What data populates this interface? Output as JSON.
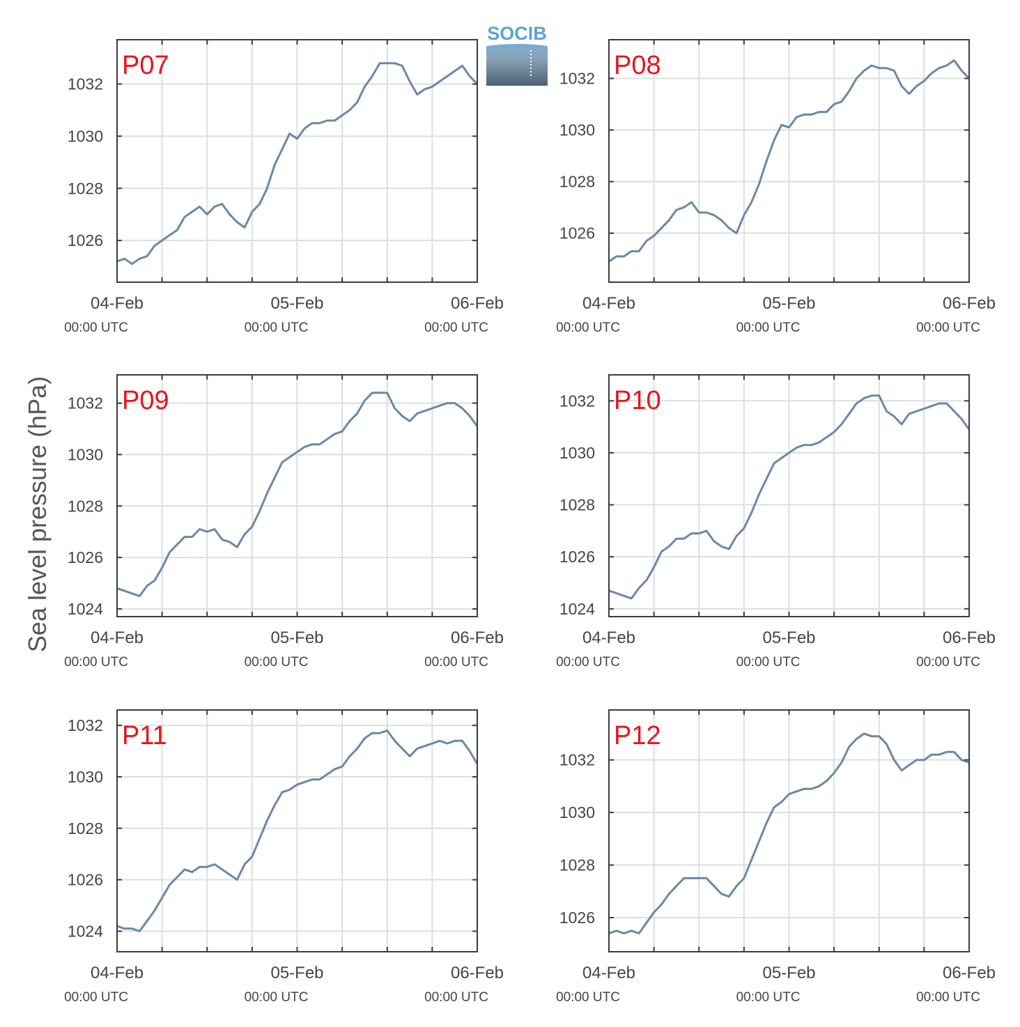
{
  "figure": {
    "ylabel": "Sea level pressure (hPa)",
    "logo_text": "SOCIB",
    "colors": {
      "line": "#6a88a8",
      "title": "#e8141e",
      "grid": "#dedede",
      "axis": "#3c3c3c",
      "logo": "#5ba4cf"
    }
  },
  "chart_data": [
    {
      "type": "line",
      "title": "P07",
      "ylim": [
        1024.4,
        1033.7
      ],
      "yticks": [
        1026,
        1028,
        1030,
        1032
      ],
      "xticks": [
        {
          "date": "04-Feb",
          "time": "00:00 UTC"
        },
        {
          "date": "05-Feb",
          "time": "00:00 UTC"
        },
        {
          "date": "06-Feb",
          "time": "00:00 UTC"
        }
      ],
      "grid": true,
      "series": [
        {
          "x_hours": [
            0,
            1,
            2,
            3,
            4,
            5,
            6,
            7,
            8,
            9,
            10,
            11,
            12,
            13,
            14,
            15,
            16,
            17,
            18,
            19,
            20,
            21,
            22,
            23,
            24,
            25,
            26,
            27,
            28,
            29,
            30,
            31,
            32,
            33,
            34,
            35,
            36,
            37,
            38,
            39,
            40,
            41,
            42,
            43,
            44,
            45,
            46,
            47,
            48
          ],
          "values": [
            1025.2,
            1025.3,
            1025.1,
            1025.3,
            1025.4,
            1025.8,
            1026.0,
            1026.2,
            1026.4,
            1026.9,
            1027.1,
            1027.3,
            1027.0,
            1027.3,
            1027.4,
            1027.0,
            1026.7,
            1026.5,
            1027.1,
            1027.4,
            1028.0,
            1028.9,
            1029.5,
            1030.1,
            1029.9,
            1030.3,
            1030.5,
            1030.5,
            1030.6,
            1030.6,
            1030.8,
            1031.0,
            1031.3,
            1031.9,
            1032.3,
            1032.8,
            1032.8,
            1032.8,
            1032.7,
            1032.1,
            1031.6,
            1031.8,
            1031.9,
            1032.1,
            1032.3,
            1032.5,
            1032.7,
            1032.3,
            1032.0
          ]
        }
      ]
    },
    {
      "type": "line",
      "title": "P08",
      "ylim": [
        1024.1,
        1033.5
      ],
      "yticks": [
        1026,
        1028,
        1030,
        1032
      ],
      "xticks": [
        {
          "date": "04-Feb",
          "time": "00:00 UTC"
        },
        {
          "date": "05-Feb",
          "time": "00:00 UTC"
        },
        {
          "date": "06-Feb",
          "time": "00:00 UTC"
        }
      ],
      "grid": true,
      "series": [
        {
          "x_hours": [
            0,
            1,
            2,
            3,
            4,
            5,
            6,
            7,
            8,
            9,
            10,
            11,
            12,
            13,
            14,
            15,
            16,
            17,
            18,
            19,
            20,
            21,
            22,
            23,
            24,
            25,
            26,
            27,
            28,
            29,
            30,
            31,
            32,
            33,
            34,
            35,
            36,
            37,
            38,
            39,
            40,
            41,
            42,
            43,
            44,
            45,
            46,
            47,
            48
          ],
          "values": [
            1024.9,
            1025.1,
            1025.1,
            1025.3,
            1025.3,
            1025.7,
            1025.9,
            1026.2,
            1026.5,
            1026.9,
            1027.0,
            1027.2,
            1026.8,
            1026.8,
            1026.7,
            1026.5,
            1026.2,
            1026.0,
            1026.7,
            1027.2,
            1027.9,
            1028.8,
            1029.6,
            1030.2,
            1030.1,
            1030.5,
            1030.6,
            1030.6,
            1030.7,
            1030.7,
            1031.0,
            1031.1,
            1031.5,
            1032.0,
            1032.3,
            1032.5,
            1032.4,
            1032.4,
            1032.3,
            1031.7,
            1031.4,
            1031.7,
            1031.9,
            1032.2,
            1032.4,
            1032.5,
            1032.7,
            1032.3,
            1032.0
          ]
        }
      ]
    },
    {
      "type": "line",
      "title": "P09",
      "ylim": [
        1023.7,
        1033.1
      ],
      "yticks": [
        1024,
        1026,
        1028,
        1030,
        1032
      ],
      "xticks": [
        {
          "date": "04-Feb",
          "time": "00:00 UTC"
        },
        {
          "date": "05-Feb",
          "time": "00:00 UTC"
        },
        {
          "date": "06-Feb",
          "time": "00:00 UTC"
        }
      ],
      "grid": true,
      "series": [
        {
          "x_hours": [
            0,
            1,
            2,
            3,
            4,
            5,
            6,
            7,
            8,
            9,
            10,
            11,
            12,
            13,
            14,
            15,
            16,
            17,
            18,
            19,
            20,
            21,
            22,
            23,
            24,
            25,
            26,
            27,
            28,
            29,
            30,
            31,
            32,
            33,
            34,
            35,
            36,
            37,
            38,
            39,
            40,
            41,
            42,
            43,
            44,
            45,
            46,
            47,
            48
          ],
          "values": [
            1024.8,
            1024.7,
            1024.6,
            1024.5,
            1024.9,
            1025.1,
            1025.6,
            1026.2,
            1026.5,
            1026.8,
            1026.8,
            1027.1,
            1027.0,
            1027.1,
            1026.7,
            1026.6,
            1026.4,
            1026.9,
            1027.2,
            1027.8,
            1028.5,
            1029.1,
            1029.7,
            1029.9,
            1030.1,
            1030.3,
            1030.4,
            1030.4,
            1030.6,
            1030.8,
            1030.9,
            1031.3,
            1031.6,
            1032.1,
            1032.4,
            1032.4,
            1032.4,
            1031.8,
            1031.5,
            1031.3,
            1031.6,
            1031.7,
            1031.8,
            1031.9,
            1032.0,
            1032.0,
            1031.8,
            1031.5,
            1031.1
          ]
        }
      ]
    },
    {
      "type": "line",
      "title": "P10",
      "ylim": [
        1023.7,
        1033.0
      ],
      "yticks": [
        1024,
        1026,
        1028,
        1030,
        1032
      ],
      "xticks": [
        {
          "date": "04-Feb",
          "time": "00:00 UTC"
        },
        {
          "date": "05-Feb",
          "time": "00:00 UTC"
        },
        {
          "date": "06-Feb",
          "time": "00:00 UTC"
        }
      ],
      "grid": true,
      "series": [
        {
          "x_hours": [
            0,
            1,
            2,
            3,
            4,
            5,
            6,
            7,
            8,
            9,
            10,
            11,
            12,
            13,
            14,
            15,
            16,
            17,
            18,
            19,
            20,
            21,
            22,
            23,
            24,
            25,
            26,
            27,
            28,
            29,
            30,
            31,
            32,
            33,
            34,
            35,
            36,
            37,
            38,
            39,
            40,
            41,
            42,
            43,
            44,
            45,
            46,
            47,
            48
          ],
          "values": [
            1024.7,
            1024.6,
            1024.5,
            1024.4,
            1024.8,
            1025.1,
            1025.6,
            1026.2,
            1026.4,
            1026.7,
            1026.7,
            1026.9,
            1026.9,
            1027.0,
            1026.6,
            1026.4,
            1026.3,
            1026.8,
            1027.1,
            1027.7,
            1028.4,
            1029.0,
            1029.6,
            1029.8,
            1030.0,
            1030.2,
            1030.3,
            1030.3,
            1030.4,
            1030.6,
            1030.8,
            1031.1,
            1031.5,
            1031.9,
            1032.1,
            1032.2,
            1032.2,
            1031.6,
            1031.4,
            1031.1,
            1031.5,
            1031.6,
            1031.7,
            1031.8,
            1031.9,
            1031.9,
            1031.6,
            1031.3,
            1030.9
          ]
        }
      ]
    },
    {
      "type": "line",
      "title": "P11",
      "ylim": [
        1023.2,
        1032.6
      ],
      "yticks": [
        1024,
        1026,
        1028,
        1030,
        1032
      ],
      "xticks": [
        {
          "date": "04-Feb",
          "time": "00:00 UTC"
        },
        {
          "date": "05-Feb",
          "time": "00:00 UTC"
        },
        {
          "date": "06-Feb",
          "time": "00:00 UTC"
        }
      ],
      "grid": true,
      "series": [
        {
          "x_hours": [
            0,
            1,
            2,
            3,
            4,
            5,
            6,
            7,
            8,
            9,
            10,
            11,
            12,
            13,
            14,
            15,
            16,
            17,
            18,
            19,
            20,
            21,
            22,
            23,
            24,
            25,
            26,
            27,
            28,
            29,
            30,
            31,
            32,
            33,
            34,
            35,
            36,
            37,
            38,
            39,
            40,
            41,
            42,
            43,
            44,
            45,
            46,
            47,
            48
          ],
          "values": [
            1024.2,
            1024.1,
            1024.1,
            1024.0,
            1024.4,
            1024.8,
            1025.3,
            1025.8,
            1026.1,
            1026.4,
            1026.3,
            1026.5,
            1026.5,
            1026.6,
            1026.4,
            1026.2,
            1026.0,
            1026.6,
            1026.9,
            1027.6,
            1028.3,
            1028.9,
            1029.4,
            1029.5,
            1029.7,
            1029.8,
            1029.9,
            1029.9,
            1030.1,
            1030.3,
            1030.4,
            1030.8,
            1031.1,
            1031.5,
            1031.7,
            1031.7,
            1031.8,
            1031.4,
            1031.1,
            1030.8,
            1031.1,
            1031.2,
            1031.3,
            1031.4,
            1031.3,
            1031.4,
            1031.4,
            1031.0,
            1030.5
          ]
        }
      ]
    },
    {
      "type": "line",
      "title": "P12",
      "ylim": [
        1024.7,
        1033.9
      ],
      "yticks": [
        1026,
        1028,
        1030,
        1032
      ],
      "xticks": [
        {
          "date": "04-Feb",
          "time": "00:00 UTC"
        },
        {
          "date": "05-Feb",
          "time": "00:00 UTC"
        },
        {
          "date": "06-Feb",
          "time": "00:00 UTC"
        }
      ],
      "grid": true,
      "series": [
        {
          "x_hours": [
            0,
            1,
            2,
            3,
            4,
            5,
            6,
            7,
            8,
            9,
            10,
            11,
            12,
            13,
            14,
            15,
            16,
            17,
            18,
            19,
            20,
            21,
            22,
            23,
            24,
            25,
            26,
            27,
            28,
            29,
            30,
            31,
            32,
            33,
            34,
            35,
            36,
            37,
            38,
            39,
            40,
            41,
            42,
            43,
            44,
            45,
            46,
            47,
            48
          ],
          "values": [
            1025.4,
            1025.5,
            1025.4,
            1025.5,
            1025.4,
            1025.8,
            1026.2,
            1026.5,
            1026.9,
            1027.2,
            1027.5,
            1027.5,
            1027.5,
            1027.5,
            1027.2,
            1026.9,
            1026.8,
            1027.2,
            1027.5,
            1028.2,
            1028.9,
            1029.6,
            1030.2,
            1030.4,
            1030.7,
            1030.8,
            1030.9,
            1030.9,
            1031.0,
            1031.2,
            1031.5,
            1031.9,
            1032.5,
            1032.8,
            1033.0,
            1032.9,
            1032.9,
            1032.6,
            1032.0,
            1031.6,
            1031.8,
            1032.0,
            1032.0,
            1032.2,
            1032.2,
            1032.3,
            1032.3,
            1032.0,
            1031.9
          ]
        }
      ]
    }
  ]
}
